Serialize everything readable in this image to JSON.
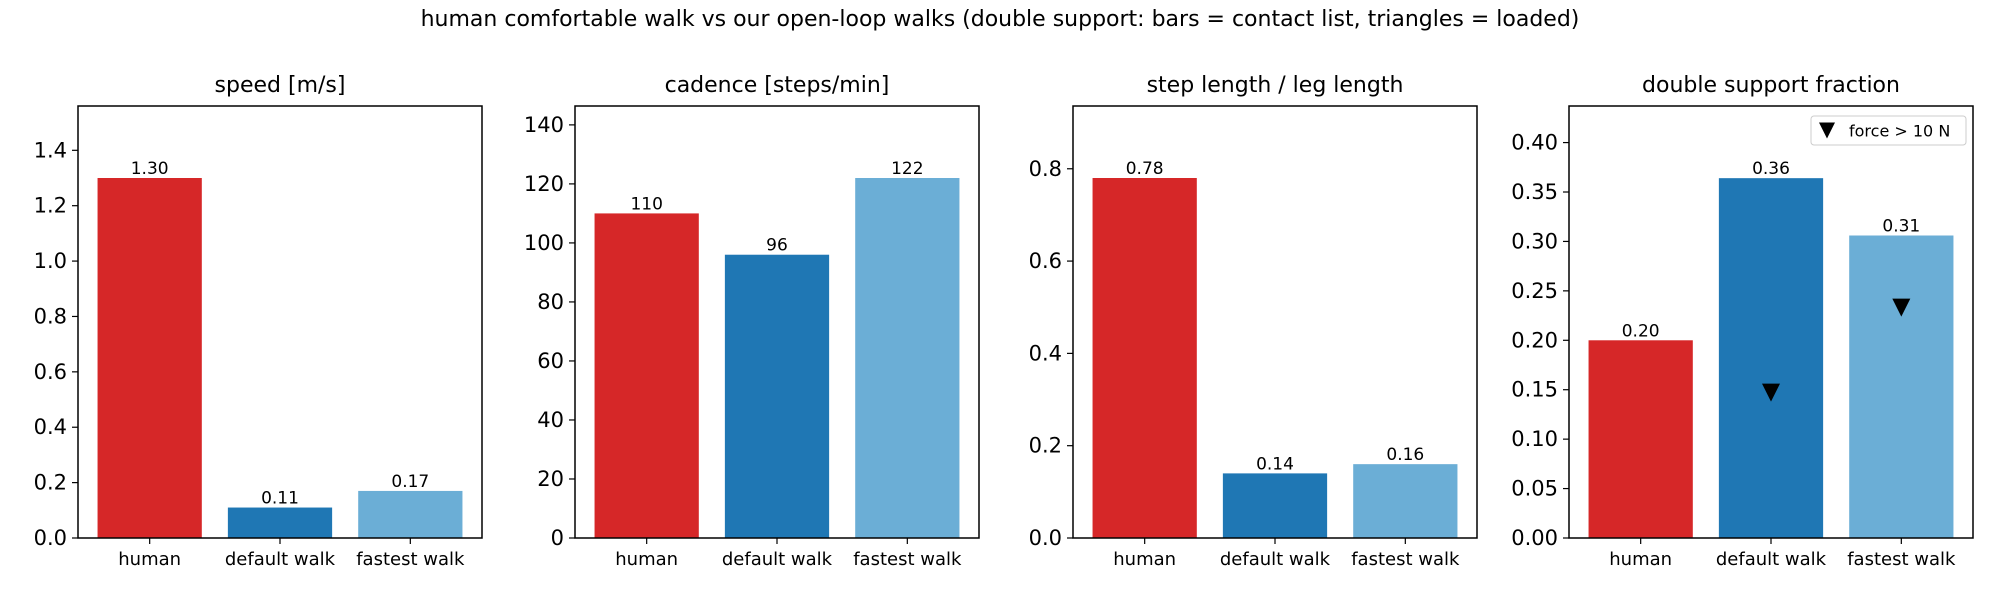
{
  "figure": {
    "title": "human comfortable walk vs our open-loop walks (double support: bars = contact list, triangles = loaded)"
  },
  "colors": {
    "human": "#d62728",
    "default walk": "#1f77b4",
    "fastest walk": "#6baed6"
  },
  "chart_data": [
    {
      "type": "bar",
      "title": "speed [m/s]",
      "categories": [
        "human",
        "default walk",
        "fastest walk"
      ],
      "values": [
        1.3,
        0.11,
        0.17
      ],
      "data_labels": [
        "1.30",
        "0.11",
        "0.17"
      ],
      "ylim": [
        0,
        1.56
      ],
      "yticks": [
        0.0,
        0.2,
        0.4,
        0.6,
        0.8,
        1.0,
        1.2,
        1.4
      ],
      "ytick_labels": [
        "0.0",
        "0.2",
        "0.4",
        "0.6",
        "0.8",
        "1.0",
        "1.2",
        "1.4"
      ],
      "grid": false
    },
    {
      "type": "bar",
      "title": "cadence [steps/min]",
      "categories": [
        "human",
        "default walk",
        "fastest walk"
      ],
      "values": [
        110,
        96,
        122
      ],
      "data_labels": [
        "110",
        "96",
        "122"
      ],
      "ylim": [
        0,
        146.4
      ],
      "yticks": [
        0,
        20,
        40,
        60,
        80,
        100,
        120,
        140
      ],
      "ytick_labels": [
        "0",
        "20",
        "40",
        "60",
        "80",
        "100",
        "120",
        "140"
      ],
      "grid": false
    },
    {
      "type": "bar",
      "title": "step length / leg length",
      "categories": [
        "human",
        "default walk",
        "fastest walk"
      ],
      "values": [
        0.78,
        0.14,
        0.16
      ],
      "data_labels": [
        "0.78",
        "0.14",
        "0.16"
      ],
      "ylim": [
        0,
        0.936
      ],
      "yticks": [
        0.0,
        0.2,
        0.4,
        0.6,
        0.8
      ],
      "ytick_labels": [
        "0.0",
        "0.2",
        "0.4",
        "0.6",
        "0.8"
      ],
      "grid": false
    },
    {
      "type": "bar",
      "title": "double support fraction",
      "categories": [
        "human",
        "default walk",
        "fastest walk"
      ],
      "values": [
        0.2,
        0.364,
        0.306
      ],
      "data_labels": [
        "0.20",
        "0.36",
        "0.31"
      ],
      "ylim": [
        0,
        0.437
      ],
      "yticks": [
        0.0,
        0.05,
        0.1,
        0.15,
        0.2,
        0.25,
        0.3,
        0.35,
        0.4
      ],
      "ytick_labels": [
        "0.00",
        "0.05",
        "0.10",
        "0.15",
        "0.20",
        "0.25",
        "0.30",
        "0.35",
        "0.40"
      ],
      "grid": false,
      "markers": {
        "name": "force > 10 N",
        "shape": "triangle-down",
        "categories": [
          "default walk",
          "fastest walk"
        ],
        "values": [
          0.147,
          0.233
        ]
      },
      "legend": {
        "placement": "top-right",
        "entries": [
          "force > 10 N"
        ]
      }
    }
  ]
}
